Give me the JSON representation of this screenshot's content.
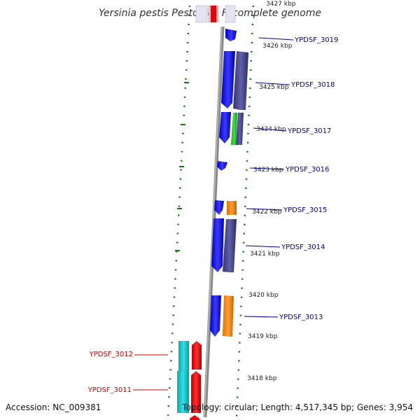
{
  "title": "Yersinia pestis Pestoides F, complete genome",
  "accession_text": "Accession: NC_009381",
  "topology_text": "Topology: circular; Length: 4,517,345 bp; Genes: 3,954",
  "colors": {
    "right_label": "#00008b",
    "left_label": "#cc0000",
    "blue": "#0000ee",
    "slate": "#4a4a90",
    "green": "#22cc22",
    "orange": "#ff8c00",
    "cyan": "#11c7cc",
    "red": "#ee0000",
    "pink": "#f0c0c8",
    "axis": "#888888",
    "dot": "#117711"
  },
  "ticks": [
    {
      "label": "3427 kbp"
    },
    {
      "label": "3426 kbp"
    },
    {
      "label": "3425 kbp"
    },
    {
      "label": "3424 kbp"
    },
    {
      "label": "3423 kbp"
    },
    {
      "label": "3422 kbp"
    },
    {
      "label": "3421 kbp"
    },
    {
      "label": "3420 kbp"
    },
    {
      "label": "3419 kbp"
    },
    {
      "label": "3418 kbp"
    }
  ],
  "right_gene_labels": [
    {
      "label": "YPDSF_3019"
    },
    {
      "label": "YPDSF_3018"
    },
    {
      "label": "YPDSF_3017"
    },
    {
      "label": "YPDSF_3016"
    },
    {
      "label": "YPDSF_3015"
    },
    {
      "label": "YPDSF_3014"
    },
    {
      "label": "YPDSF_3013"
    }
  ],
  "left_gene_labels": [
    {
      "label": "YPDSF_3012"
    },
    {
      "label": "YPDSF_3011"
    }
  ]
}
